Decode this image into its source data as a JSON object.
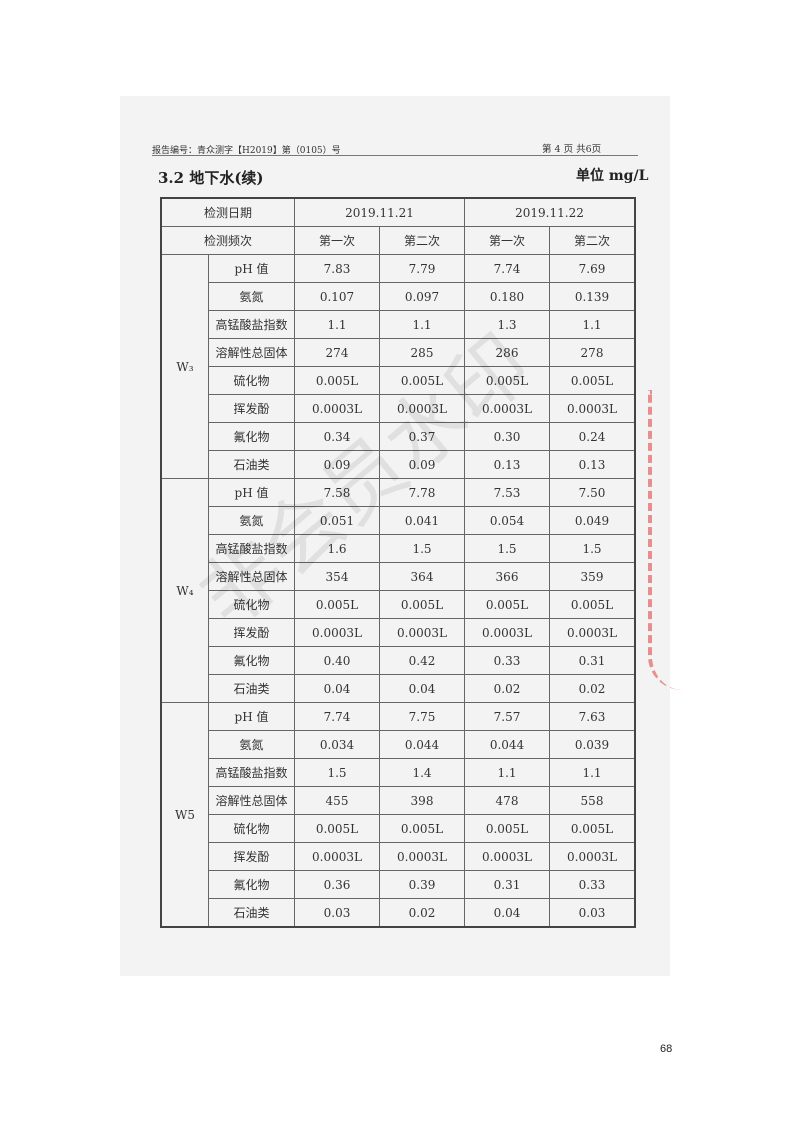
{
  "header": {
    "report_no": "报告编号：青众测字【H2019】第（0105）号",
    "page_info": "第 4 页 共6页"
  },
  "section_title": "3.2 地下水(续)",
  "unit": "单位 mg/L",
  "table": {
    "date_label": "检测日期",
    "dates": [
      "2019.11.21",
      "2019.11.22"
    ],
    "freq_label": "检测频次",
    "freqs": [
      "第一次",
      "第二次",
      "第一次",
      "第二次"
    ],
    "groups": [
      {
        "site": "W₃",
        "rows": [
          {
            "param": "pH 值",
            "values": [
              "7.83",
              "7.79",
              "7.74",
              "7.69"
            ]
          },
          {
            "param": "氨氮",
            "values": [
              "0.107",
              "0.097",
              "0.180",
              "0.139"
            ]
          },
          {
            "param": "高锰酸盐指数",
            "values": [
              "1.1",
              "1.1",
              "1.3",
              "1.1"
            ]
          },
          {
            "param": "溶解性总固体",
            "values": [
              "274",
              "285",
              "286",
              "278"
            ]
          },
          {
            "param": "硫化物",
            "values": [
              "0.005L",
              "0.005L",
              "0.005L",
              "0.005L"
            ]
          },
          {
            "param": "挥发酚",
            "values": [
              "0.0003L",
              "0.0003L",
              "0.0003L",
              "0.0003L"
            ]
          },
          {
            "param": "氟化物",
            "values": [
              "0.34",
              "0.37",
              "0.30",
              "0.24"
            ]
          },
          {
            "param": "石油类",
            "values": [
              "0.09",
              "0.09",
              "0.13",
              "0.13"
            ]
          }
        ]
      },
      {
        "site": "W₄",
        "rows": [
          {
            "param": "pH 值",
            "values": [
              "7.58",
              "7.78",
              "7.53",
              "7.50"
            ]
          },
          {
            "param": "氨氮",
            "values": [
              "0.051",
              "0.041",
              "0.054",
              "0.049"
            ]
          },
          {
            "param": "高锰酸盐指数",
            "values": [
              "1.6",
              "1.5",
              "1.5",
              "1.5"
            ]
          },
          {
            "param": "溶解性总固体",
            "values": [
              "354",
              "364",
              "366",
              "359"
            ]
          },
          {
            "param": "硫化物",
            "values": [
              "0.005L",
              "0.005L",
              "0.005L",
              "0.005L"
            ]
          },
          {
            "param": "挥发酚",
            "values": [
              "0.0003L",
              "0.0003L",
              "0.0003L",
              "0.0003L"
            ]
          },
          {
            "param": "氟化物",
            "values": [
              "0.40",
              "0.42",
              "0.33",
              "0.31"
            ]
          },
          {
            "param": "石油类",
            "values": [
              "0.04",
              "0.04",
              "0.02",
              "0.02"
            ]
          }
        ]
      },
      {
        "site": "W5",
        "rows": [
          {
            "param": "pH 值",
            "values": [
              "7.74",
              "7.75",
              "7.57",
              "7.63"
            ]
          },
          {
            "param": "氨氮",
            "values": [
              "0.034",
              "0.044",
              "0.044",
              "0.039"
            ]
          },
          {
            "param": "高锰酸盐指数",
            "values": [
              "1.5",
              "1.4",
              "1.1",
              "1.1"
            ]
          },
          {
            "param": "溶解性总固体",
            "values": [
              "455",
              "398",
              "478",
              "558"
            ]
          },
          {
            "param": "硫化物",
            "values": [
              "0.005L",
              "0.005L",
              "0.005L",
              "0.005L"
            ]
          },
          {
            "param": "挥发酚",
            "values": [
              "0.0003L",
              "0.0003L",
              "0.0003L",
              "0.0003L"
            ]
          },
          {
            "param": "氟化物",
            "values": [
              "0.36",
              "0.39",
              "0.31",
              "0.33"
            ]
          },
          {
            "param": "石油类",
            "values": [
              "0.03",
              "0.02",
              "0.04",
              "0.03"
            ]
          }
        ]
      }
    ]
  },
  "watermark": "非会员水印",
  "page_number": "68"
}
